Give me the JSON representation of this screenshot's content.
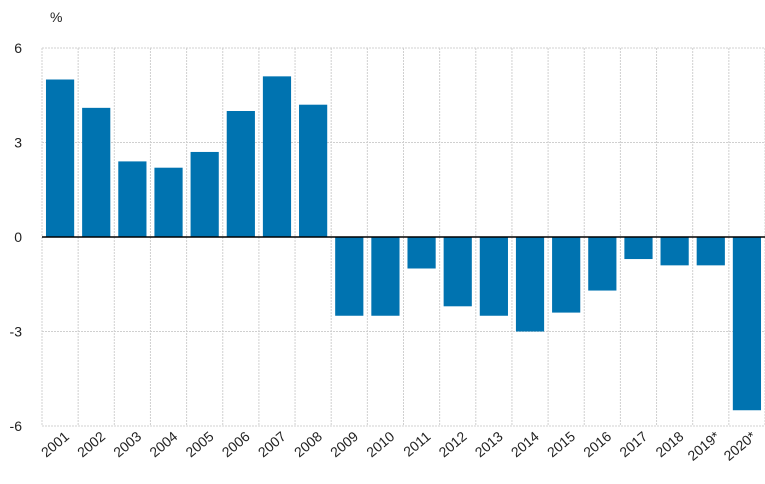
{
  "chart_data": {
    "type": "bar",
    "y_label": "%",
    "categories": [
      "2001",
      "2002",
      "2003",
      "2004",
      "2005",
      "2006",
      "2007",
      "2008",
      "2009",
      "2010",
      "2011",
      "2012",
      "2013",
      "2014",
      "2015",
      "2016",
      "2017",
      "2018",
      "2019*",
      "2020*"
    ],
    "values": [
      5.0,
      4.1,
      2.4,
      2.2,
      2.7,
      4.0,
      5.1,
      4.2,
      -2.5,
      -2.5,
      -1.0,
      -2.2,
      -2.5,
      -3.0,
      -2.4,
      -1.7,
      -0.7,
      -0.9,
      -0.9,
      -5.5
    ],
    "color": "#0073b0",
    "ylim": [
      -6,
      6
    ],
    "yticks": [
      -6,
      -3,
      0,
      3,
      6
    ],
    "grid": true
  }
}
